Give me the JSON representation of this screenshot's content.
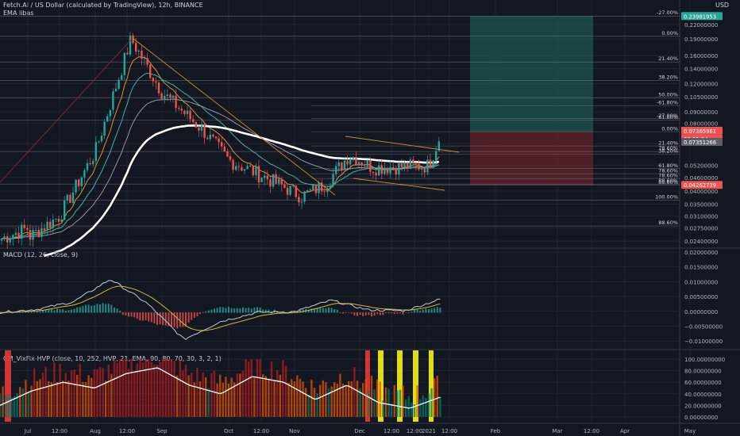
{
  "header": {
    "symbol_line": "Fetch.AI / US Dollar (calculated by TradingView), 12h, BINANCE",
    "ema_label": "EMA libas",
    "currency_button": "USD"
  },
  "indicators": {
    "macd_label": "MACD (12, 26, close, 9)",
    "cm_label": "CM_VixFix-HVP (close, 10, 252, HVP, 21, EMA, 90, 80, 70, 30, 3, 2, 1)"
  },
  "colors": {
    "background": "#131722",
    "grid": "#2a2e39",
    "up": "#26a69a",
    "down": "#ef5350",
    "ema_white": "#ffffff",
    "ema_teal": "#3fb3a6",
    "ema_orange": "#f29a38",
    "ema_grey": "#a0a3ab",
    "fib": "#9598a1",
    "target_zone": "#1b4d4a",
    "stop_zone": "#5a2128",
    "trendline": "#d18d2a",
    "macd_line": "#c2c7d0",
    "signal_line": "#d7b43a",
    "marker_yellow": "#f5f116",
    "marker_red": "#e53935"
  },
  "price_axis": {
    "ticks": [
      "0.24000000",
      "0.22000000",
      "0.19000000",
      "0.16000000",
      "0.14000000",
      "0.12000000",
      "0.10500000",
      "0.09000000",
      "0.08000000",
      "0.06500000",
      "0.05200000",
      "0.04600000",
      "0.04000000",
      "0.03500000",
      "0.03100000",
      "0.02750000",
      "0.02400000"
    ],
    "badges": [
      {
        "text": "0.23981953",
        "color": "#26a69a"
      },
      {
        "text": "0.07365961",
        "color": "#ef5350"
      },
      {
        "text": "08:01:14",
        "color": "#ef5350"
      },
      {
        "text": "0.07351266",
        "color": "#5d606b"
      },
      {
        "text": "0.04262739",
        "color": "#ef5350"
      }
    ]
  },
  "fib_main": [
    {
      "label": "-27.00%",
      "price": 0.24
    },
    {
      "label": "0.00%",
      "price": 0.195
    },
    {
      "label": "21.40%",
      "price": 0.15
    },
    {
      "label": "38.20%",
      "price": 0.124
    },
    {
      "label": "50.00%",
      "price": 0.104
    },
    {
      "label": "61.80%",
      "price": 0.0825
    },
    {
      "label": "78.60%",
      "price": 0.06
    },
    {
      "label": "88.60%",
      "price": 0.043
    },
    {
      "label": "100.00%",
      "price": 0.0365
    },
    {
      "label": "88.60%",
      "price": 0.028
    }
  ],
  "fib_secondary": [
    {
      "label": "-61.80%",
      "price": 0.096
    },
    {
      "label": "-27.00%",
      "price": 0.084
    },
    {
      "label": "0.00%",
      "price": 0.0735
    },
    {
      "label": "21.40%",
      "price": 0.0635
    },
    {
      "label": "38.20%",
      "price": 0.0585
    },
    {
      "label": "61.80%",
      "price": 0.0505
    },
    {
      "label": "78.60%",
      "price": 0.0478
    },
    {
      "label": "78.60%",
      "price": 0.0455
    },
    {
      "label": "88.60%",
      "price": 0.0425
    }
  ],
  "macd_axis": [
    "0.02000000",
    "0.01500000",
    "0.01000000",
    "0.00500000",
    "0.00000000",
    "−0.00500000",
    "−0.01000000"
  ],
  "cm_axis": [
    "100.00000000",
    "80.00000000",
    "60.00000000",
    "40.00000000",
    "20.00000000",
    "0.00000000"
  ],
  "time_axis": [
    "Jul",
    "12:00",
    "Aug",
    "12:00",
    "Sep",
    "Oct",
    "12:00",
    "Nov",
    "Dec",
    "12:00",
    "12:00",
    "2021",
    "12:00",
    "Feb",
    "Mar",
    "12:00",
    "Apr",
    "May"
  ],
  "chart_data": {
    "type": "candlestick",
    "symbol": "Fetch.AI / US Dollar",
    "interval": "12h",
    "price_points": [
      {
        "t": "Jul",
        "p": 0.0248
      },
      {
        "t": "Jul 12:00",
        "p": 0.031
      },
      {
        "t": "Aug",
        "p": 0.06
      },
      {
        "t": "Aug 12:00",
        "p": 0.19
      },
      {
        "t": "Sep",
        "p": 0.11
      },
      {
        "t": "Sep 12:00",
        "p": 0.075
      },
      {
        "t": "Oct",
        "p": 0.055
      },
      {
        "t": "Oct 12:00",
        "p": 0.047
      },
      {
        "t": "Nov",
        "p": 0.038
      },
      {
        "t": "Nov 12:00",
        "p": 0.043
      },
      {
        "t": "Dec",
        "p": 0.058
      },
      {
        "t": "Dec 12:00",
        "p": 0.051
      },
      {
        "t": "2021",
        "p": 0.052
      },
      {
        "t": "2021 latest",
        "p": 0.0737
      }
    ],
    "last_price": 0.07365961,
    "position": {
      "target": 0.23981953,
      "entry": 0.07351266,
      "stop": 0.04262739
    },
    "macd_points": [
      0.0,
      0.001,
      0.0035,
      0.011,
      0.003,
      -0.009,
      -0.003,
      0.0,
      0.0002,
      0.004,
      0.0008,
      0.0005,
      0.0045
    ],
    "cm_highlights": [
      "Jul",
      "Dec",
      "Dec 12:00",
      "2021"
    ],
    "cm_line": [
      20,
      45,
      60,
      50,
      75,
      85,
      55,
      40,
      70,
      60,
      30,
      55,
      25,
      15,
      35
    ]
  }
}
